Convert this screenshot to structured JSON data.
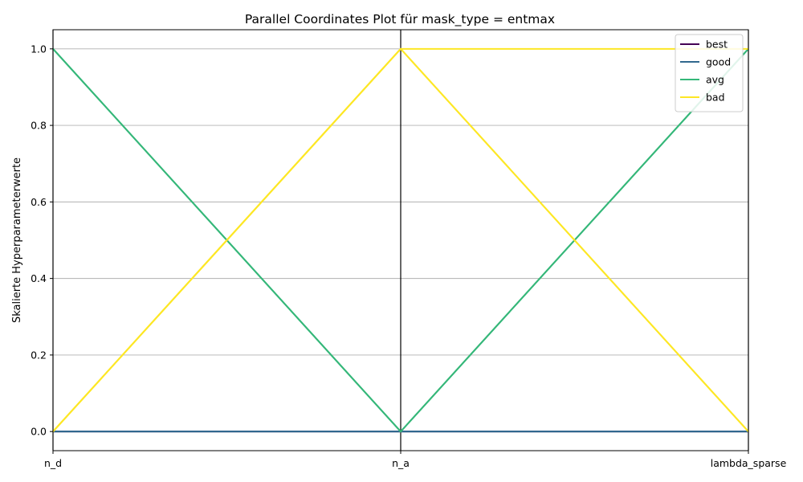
{
  "chart_data": {
    "type": "line",
    "title": "Parallel Coordinates Plot für mask_type = entmax",
    "xlabel": "",
    "ylabel": "Skalierte Hyperparameterwerte",
    "categories": [
      "n_d",
      "n_a",
      "lambda_sparse"
    ],
    "ylim": [
      -0.05,
      1.05
    ],
    "yticks": [
      0.0,
      0.2,
      0.4,
      0.6,
      0.8,
      1.0
    ],
    "ytick_labels": [
      "0.0",
      "0.2",
      "0.4",
      "0.6",
      "0.8",
      "1.0"
    ],
    "grid": true,
    "legend_position": "top-right",
    "series": [
      {
        "name": "best",
        "color": "#440154",
        "lines": [
          [
            0,
            0,
            0
          ]
        ]
      },
      {
        "name": "good",
        "color": "#31688e",
        "lines": [
          [
            0,
            0,
            0
          ],
          [
            0,
            0,
            0
          ]
        ]
      },
      {
        "name": "avg",
        "color": "#35b779",
        "lines": [
          [
            1,
            0,
            1
          ],
          [
            1,
            0,
            1
          ]
        ]
      },
      {
        "name": "bad",
        "color": "#fde725",
        "lines": [
          [
            0,
            1,
            0
          ],
          [
            0,
            1,
            0
          ],
          [
            0,
            1,
            1
          ]
        ]
      }
    ]
  }
}
